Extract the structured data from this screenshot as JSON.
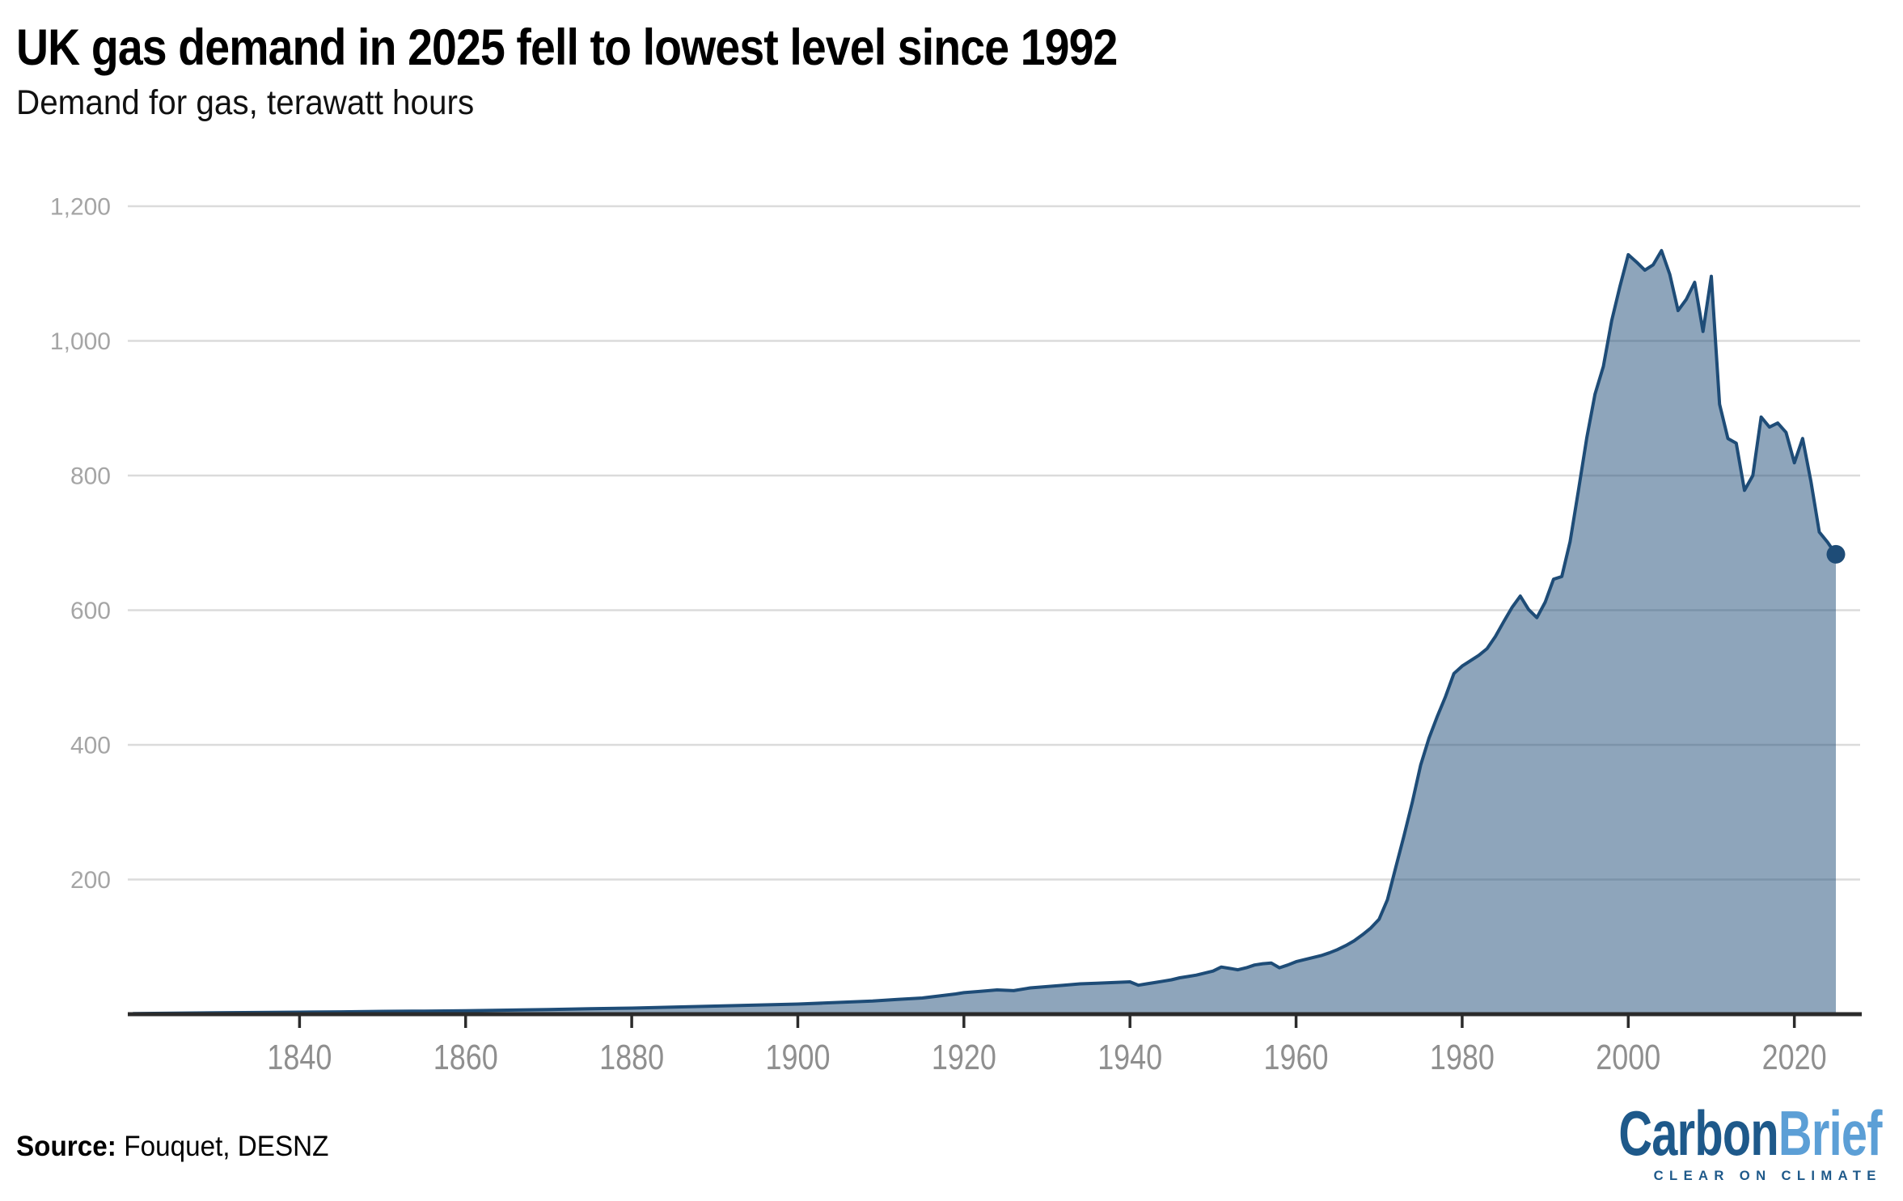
{
  "chart_data": {
    "type": "area",
    "title": "UK gas demand in 2025 fell to lowest level since 1992",
    "subtitle": "Demand for gas, terawatt hours",
    "unit": "terawatt hours",
    "xlim": [
      1820,
      2025
    ],
    "ylim": [
      0,
      1200
    ],
    "grid": "horizontal",
    "legend": "none",
    "yticks": [
      200,
      400,
      600,
      800,
      1000,
      1200
    ],
    "ytick_labels": [
      "200",
      "400",
      "600",
      "800",
      "1,000",
      "1,200"
    ],
    "xticks": [
      1840,
      1860,
      1880,
      1900,
      1920,
      1940,
      1960,
      1980,
      2000,
      2020
    ],
    "endpoint": {
      "year": 2025,
      "value": 683
    },
    "colors": {
      "line": "#1E4C77",
      "fill": "rgba(30,76,119,0.5)",
      "dot": "#1E4C77",
      "grid": "#DBDBDB",
      "axis": "#2B2B2B",
      "y_tick_label": "#A5A5A5",
      "x_tick_label": "#8F8F8F"
    },
    "points": [
      [
        1820,
        1
      ],
      [
        1825,
        1.5
      ],
      [
        1830,
        2
      ],
      [
        1835,
        2.5
      ],
      [
        1840,
        3
      ],
      [
        1845,
        3.5
      ],
      [
        1850,
        4.2
      ],
      [
        1855,
        4.6
      ],
      [
        1860,
        5
      ],
      [
        1865,
        6
      ],
      [
        1870,
        7
      ],
      [
        1875,
        8
      ],
      [
        1880,
        9
      ],
      [
        1885,
        10.5
      ],
      [
        1890,
        12
      ],
      [
        1895,
        13.5
      ],
      [
        1900,
        15
      ],
      [
        1903,
        16.5
      ],
      [
        1906,
        18
      ],
      [
        1909,
        19.5
      ],
      [
        1912,
        22
      ],
      [
        1915,
        24
      ],
      [
        1917,
        27
      ],
      [
        1919,
        30
      ],
      [
        1920,
        32
      ],
      [
        1922,
        34
      ],
      [
        1924,
        36
      ],
      [
        1926,
        35
      ],
      [
        1928,
        39
      ],
      [
        1930,
        41
      ],
      [
        1932,
        43
      ],
      [
        1934,
        45
      ],
      [
        1936,
        46
      ],
      [
        1938,
        47
      ],
      [
        1940,
        48
      ],
      [
        1941,
        43
      ],
      [
        1942,
        45
      ],
      [
        1943,
        47
      ],
      [
        1944,
        49
      ],
      [
        1945,
        51
      ],
      [
        1946,
        54
      ],
      [
        1947,
        56
      ],
      [
        1948,
        58
      ],
      [
        1949,
        61
      ],
      [
        1950,
        64
      ],
      [
        1951,
        70
      ],
      [
        1952,
        68
      ],
      [
        1953,
        66
      ],
      [
        1954,
        69
      ],
      [
        1955,
        73
      ],
      [
        1956,
        75
      ],
      [
        1957,
        76
      ],
      [
        1958,
        69
      ],
      [
        1959,
        73
      ],
      [
        1960,
        78
      ],
      [
        1961,
        81
      ],
      [
        1962,
        84
      ],
      [
        1963,
        87
      ],
      [
        1964,
        91
      ],
      [
        1965,
        96
      ],
      [
        1966,
        102
      ],
      [
        1967,
        109
      ],
      [
        1968,
        118
      ],
      [
        1969,
        128
      ],
      [
        1970,
        141
      ],
      [
        1971,
        170
      ],
      [
        1972,
        218
      ],
      [
        1973,
        265
      ],
      [
        1974,
        315
      ],
      [
        1975,
        370
      ],
      [
        1976,
        410
      ],
      [
        1977,
        442
      ],
      [
        1978,
        472
      ],
      [
        1979,
        506
      ],
      [
        1980,
        517
      ],
      [
        1981,
        525
      ],
      [
        1982,
        533
      ],
      [
        1983,
        543
      ],
      [
        1984,
        561
      ],
      [
        1985,
        583
      ],
      [
        1986,
        604
      ],
      [
        1987,
        621
      ],
      [
        1988,
        601
      ],
      [
        1989,
        589
      ],
      [
        1990,
        612
      ],
      [
        1991,
        646
      ],
      [
        1992,
        650
      ],
      [
        1993,
        702
      ],
      [
        1994,
        778
      ],
      [
        1995,
        856
      ],
      [
        1996,
        921
      ],
      [
        1997,
        962
      ],
      [
        1998,
        1030
      ],
      [
        1999,
        1081
      ],
      [
        2000,
        1128
      ],
      [
        2001,
        1117
      ],
      [
        2002,
        1105
      ],
      [
        2003,
        1113
      ],
      [
        2004,
        1134
      ],
      [
        2005,
        1099
      ],
      [
        2006,
        1045
      ],
      [
        2007,
        1062
      ],
      [
        2008,
        1087
      ],
      [
        2009,
        1014
      ],
      [
        2010,
        1096
      ],
      [
        2011,
        906
      ],
      [
        2012,
        855
      ],
      [
        2013,
        848
      ],
      [
        2014,
        778
      ],
      [
        2015,
        800
      ],
      [
        2016,
        887
      ],
      [
        2017,
        872
      ],
      [
        2018,
        878
      ],
      [
        2019,
        864
      ],
      [
        2020,
        819
      ],
      [
        2021,
        855
      ],
      [
        2022,
        791
      ],
      [
        2023,
        716
      ],
      [
        2024,
        701
      ],
      [
        2025,
        683
      ]
    ]
  },
  "footer": {
    "source_label": "Source:",
    "source_text": "Fouquet, DESNZ",
    "logo": {
      "part1": "Carbon",
      "part2": "Brief",
      "part1_color": "#1E598A",
      "part2_color": "#5C9FD6",
      "tagline": "CLEAR ON CLIMATE",
      "tagline_color": "#1E598A"
    }
  }
}
